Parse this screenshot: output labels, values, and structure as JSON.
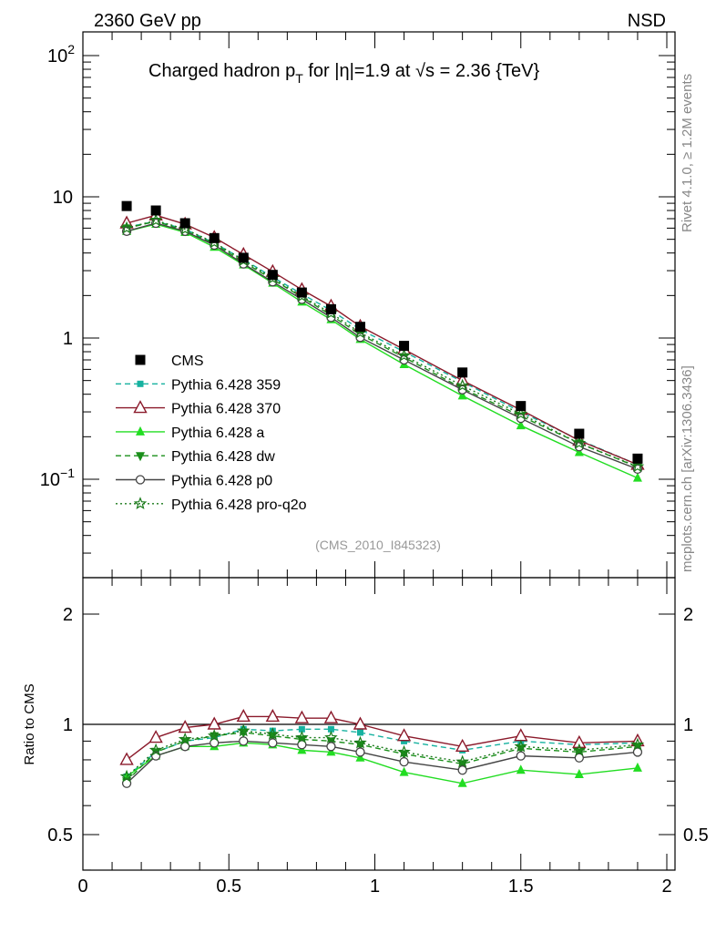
{
  "header": {
    "left": "2360 GeV pp",
    "right": "NSD"
  },
  "side_labels": {
    "rivet": "Rivet 4.1.0, ≥ 1.2M events",
    "mcplots": "mcplots.cern.ch [arXiv:1306.3436]"
  },
  "analysis_tag": "(CMS_2010_I845323)",
  "chart_data": [
    {
      "type": "line",
      "panel": "main",
      "title": "Charged hadron p_T for |η|=1.9 at √s = 2.36 {TeV}",
      "title_parts": {
        "a": "Charged hadron p",
        "sub": "T",
        "b": " for |η|=1.9 at ",
        "sqrt": "√",
        "c": "s = 2.36 {TeV}"
      },
      "yscale": "log",
      "xlim": [
        0,
        2.05
      ],
      "ylim": [
        0.025,
        140
      ],
      "yticks": [
        {
          "value": 100,
          "base": "10",
          "exp": "2"
        },
        {
          "value": 10,
          "base": "10",
          "exp": ""
        },
        {
          "value": 1,
          "base": "1",
          "exp": ""
        },
        {
          "value": 0.1,
          "base": "10",
          "exp": "−1"
        }
      ],
      "legend_position": "middle-left",
      "x": [
        0.15,
        0.25,
        0.35,
        0.45,
        0.55,
        0.65,
        0.75,
        0.85,
        0.95,
        1.1,
        1.3,
        1.5,
        1.7,
        1.9
      ],
      "series": [
        {
          "name": "CMS",
          "color": "#000000",
          "marker": "square",
          "line": "none",
          "values": [
            8.6,
            8.0,
            6.5,
            5.1,
            3.7,
            2.8,
            2.1,
            1.6,
            1.2,
            0.88,
            0.57,
            0.33,
            0.21,
            0.14
          ]
        },
        {
          "name": "Pythia 6.428 359",
          "color": "#17b2a0",
          "marker": "square-small",
          "line": "dashed",
          "values": [
            6.1,
            6.7,
            5.9,
            4.7,
            3.6,
            2.7,
            2.05,
            1.57,
            1.15,
            0.8,
            0.49,
            0.3,
            0.19,
            0.127
          ]
        },
        {
          "name": "Pythia 6.428 370",
          "color": "#8b1a2b",
          "marker": "triangle-open",
          "line": "solid",
          "values": [
            6.5,
            7.4,
            6.4,
            5.15,
            3.9,
            2.95,
            2.2,
            1.68,
            1.21,
            0.83,
            0.5,
            0.31,
            0.188,
            0.127
          ]
        },
        {
          "name": "Pythia 6.428 a",
          "color": "#22dd22",
          "marker": "triangle",
          "line": "solid",
          "values": [
            5.7,
            6.4,
            5.6,
            4.4,
            3.3,
            2.45,
            1.8,
            1.35,
            0.98,
            0.65,
            0.39,
            0.24,
            0.155,
            0.102
          ]
        },
        {
          "name": "Pythia 6.428 dw",
          "color": "#1a8f1a",
          "marker": "triangle-down",
          "line": "dashed",
          "values": [
            6.0,
            6.7,
            5.75,
            4.65,
            3.45,
            2.6,
            1.95,
            1.45,
            1.06,
            0.73,
            0.44,
            0.28,
            0.18,
            0.122
          ]
        },
        {
          "name": "Pythia 6.428 p0",
          "color": "#444444",
          "marker": "circle-open",
          "line": "solid",
          "values": [
            5.7,
            6.5,
            5.7,
            4.55,
            3.35,
            2.5,
            1.88,
            1.4,
            1.01,
            0.7,
            0.43,
            0.27,
            0.17,
            0.118
          ]
        },
        {
          "name": "Pythia 6.428 pro-q2o",
          "color": "#1a7a1a",
          "marker": "star-open",
          "line": "dotted",
          "values": [
            6.0,
            6.8,
            5.9,
            4.75,
            3.55,
            2.65,
            1.98,
            1.5,
            1.09,
            0.75,
            0.46,
            0.29,
            0.18,
            0.123
          ]
        }
      ]
    },
    {
      "type": "line",
      "panel": "ratio",
      "ylabel": "Ratio to CMS",
      "xlim": [
        0,
        2.05
      ],
      "ylim": [
        0.35,
        2.3
      ],
      "yscale": "log",
      "yticks": [
        {
          "value": 2,
          "label": "2"
        },
        {
          "value": 1,
          "label": "1"
        },
        {
          "value": 0.5,
          "label": "0.5"
        }
      ],
      "xticks": [
        {
          "value": 0,
          "label": "0"
        },
        {
          "value": 0.5,
          "label": "0.5"
        },
        {
          "value": 1,
          "label": "1"
        },
        {
          "value": 1.5,
          "label": "1.5"
        },
        {
          "value": 2,
          "label": "2"
        }
      ],
      "reference_line": 1,
      "x": [
        0.15,
        0.25,
        0.35,
        0.45,
        0.55,
        0.65,
        0.75,
        0.85,
        0.95,
        1.1,
        1.3,
        1.5,
        1.7,
        1.9
      ],
      "series": [
        {
          "name": "Pythia 6.428 359",
          "color": "#17b2a0",
          "marker": "square-small",
          "line": "dashed",
          "values": [
            0.72,
            0.84,
            0.9,
            0.92,
            0.97,
            0.96,
            0.97,
            0.97,
            0.95,
            0.9,
            0.85,
            0.9,
            0.88,
            0.89
          ]
        },
        {
          "name": "Pythia 6.428 370",
          "color": "#8b1a2b",
          "marker": "triangle-open",
          "line": "solid",
          "values": [
            0.8,
            0.92,
            0.98,
            1.0,
            1.05,
            1.05,
            1.04,
            1.04,
            1.0,
            0.93,
            0.87,
            0.93,
            0.89,
            0.9
          ]
        },
        {
          "name": "Pythia 6.428 a",
          "color": "#22dd22",
          "marker": "triangle",
          "line": "solid",
          "values": [
            0.72,
            0.82,
            0.87,
            0.87,
            0.89,
            0.88,
            0.85,
            0.84,
            0.81,
            0.74,
            0.69,
            0.75,
            0.73,
            0.76
          ]
        },
        {
          "name": "Pythia 6.428 dw",
          "color": "#1a8f1a",
          "marker": "triangle-down",
          "line": "dashed",
          "values": [
            0.7,
            0.84,
            0.9,
            0.93,
            0.95,
            0.93,
            0.91,
            0.9,
            0.88,
            0.83,
            0.78,
            0.86,
            0.84,
            0.87
          ]
        },
        {
          "name": "Pythia 6.428 p0",
          "color": "#444444",
          "marker": "circle-open",
          "line": "solid",
          "values": [
            0.69,
            0.82,
            0.87,
            0.89,
            0.9,
            0.89,
            0.88,
            0.87,
            0.84,
            0.79,
            0.75,
            0.82,
            0.81,
            0.84
          ]
        },
        {
          "name": "Pythia 6.428 pro-q2o",
          "color": "#1a7a1a",
          "marker": "star-open",
          "line": "dotted",
          "values": [
            0.72,
            0.85,
            0.91,
            0.93,
            0.96,
            0.94,
            0.92,
            0.92,
            0.89,
            0.84,
            0.79,
            0.87,
            0.85,
            0.88
          ]
        }
      ]
    }
  ]
}
